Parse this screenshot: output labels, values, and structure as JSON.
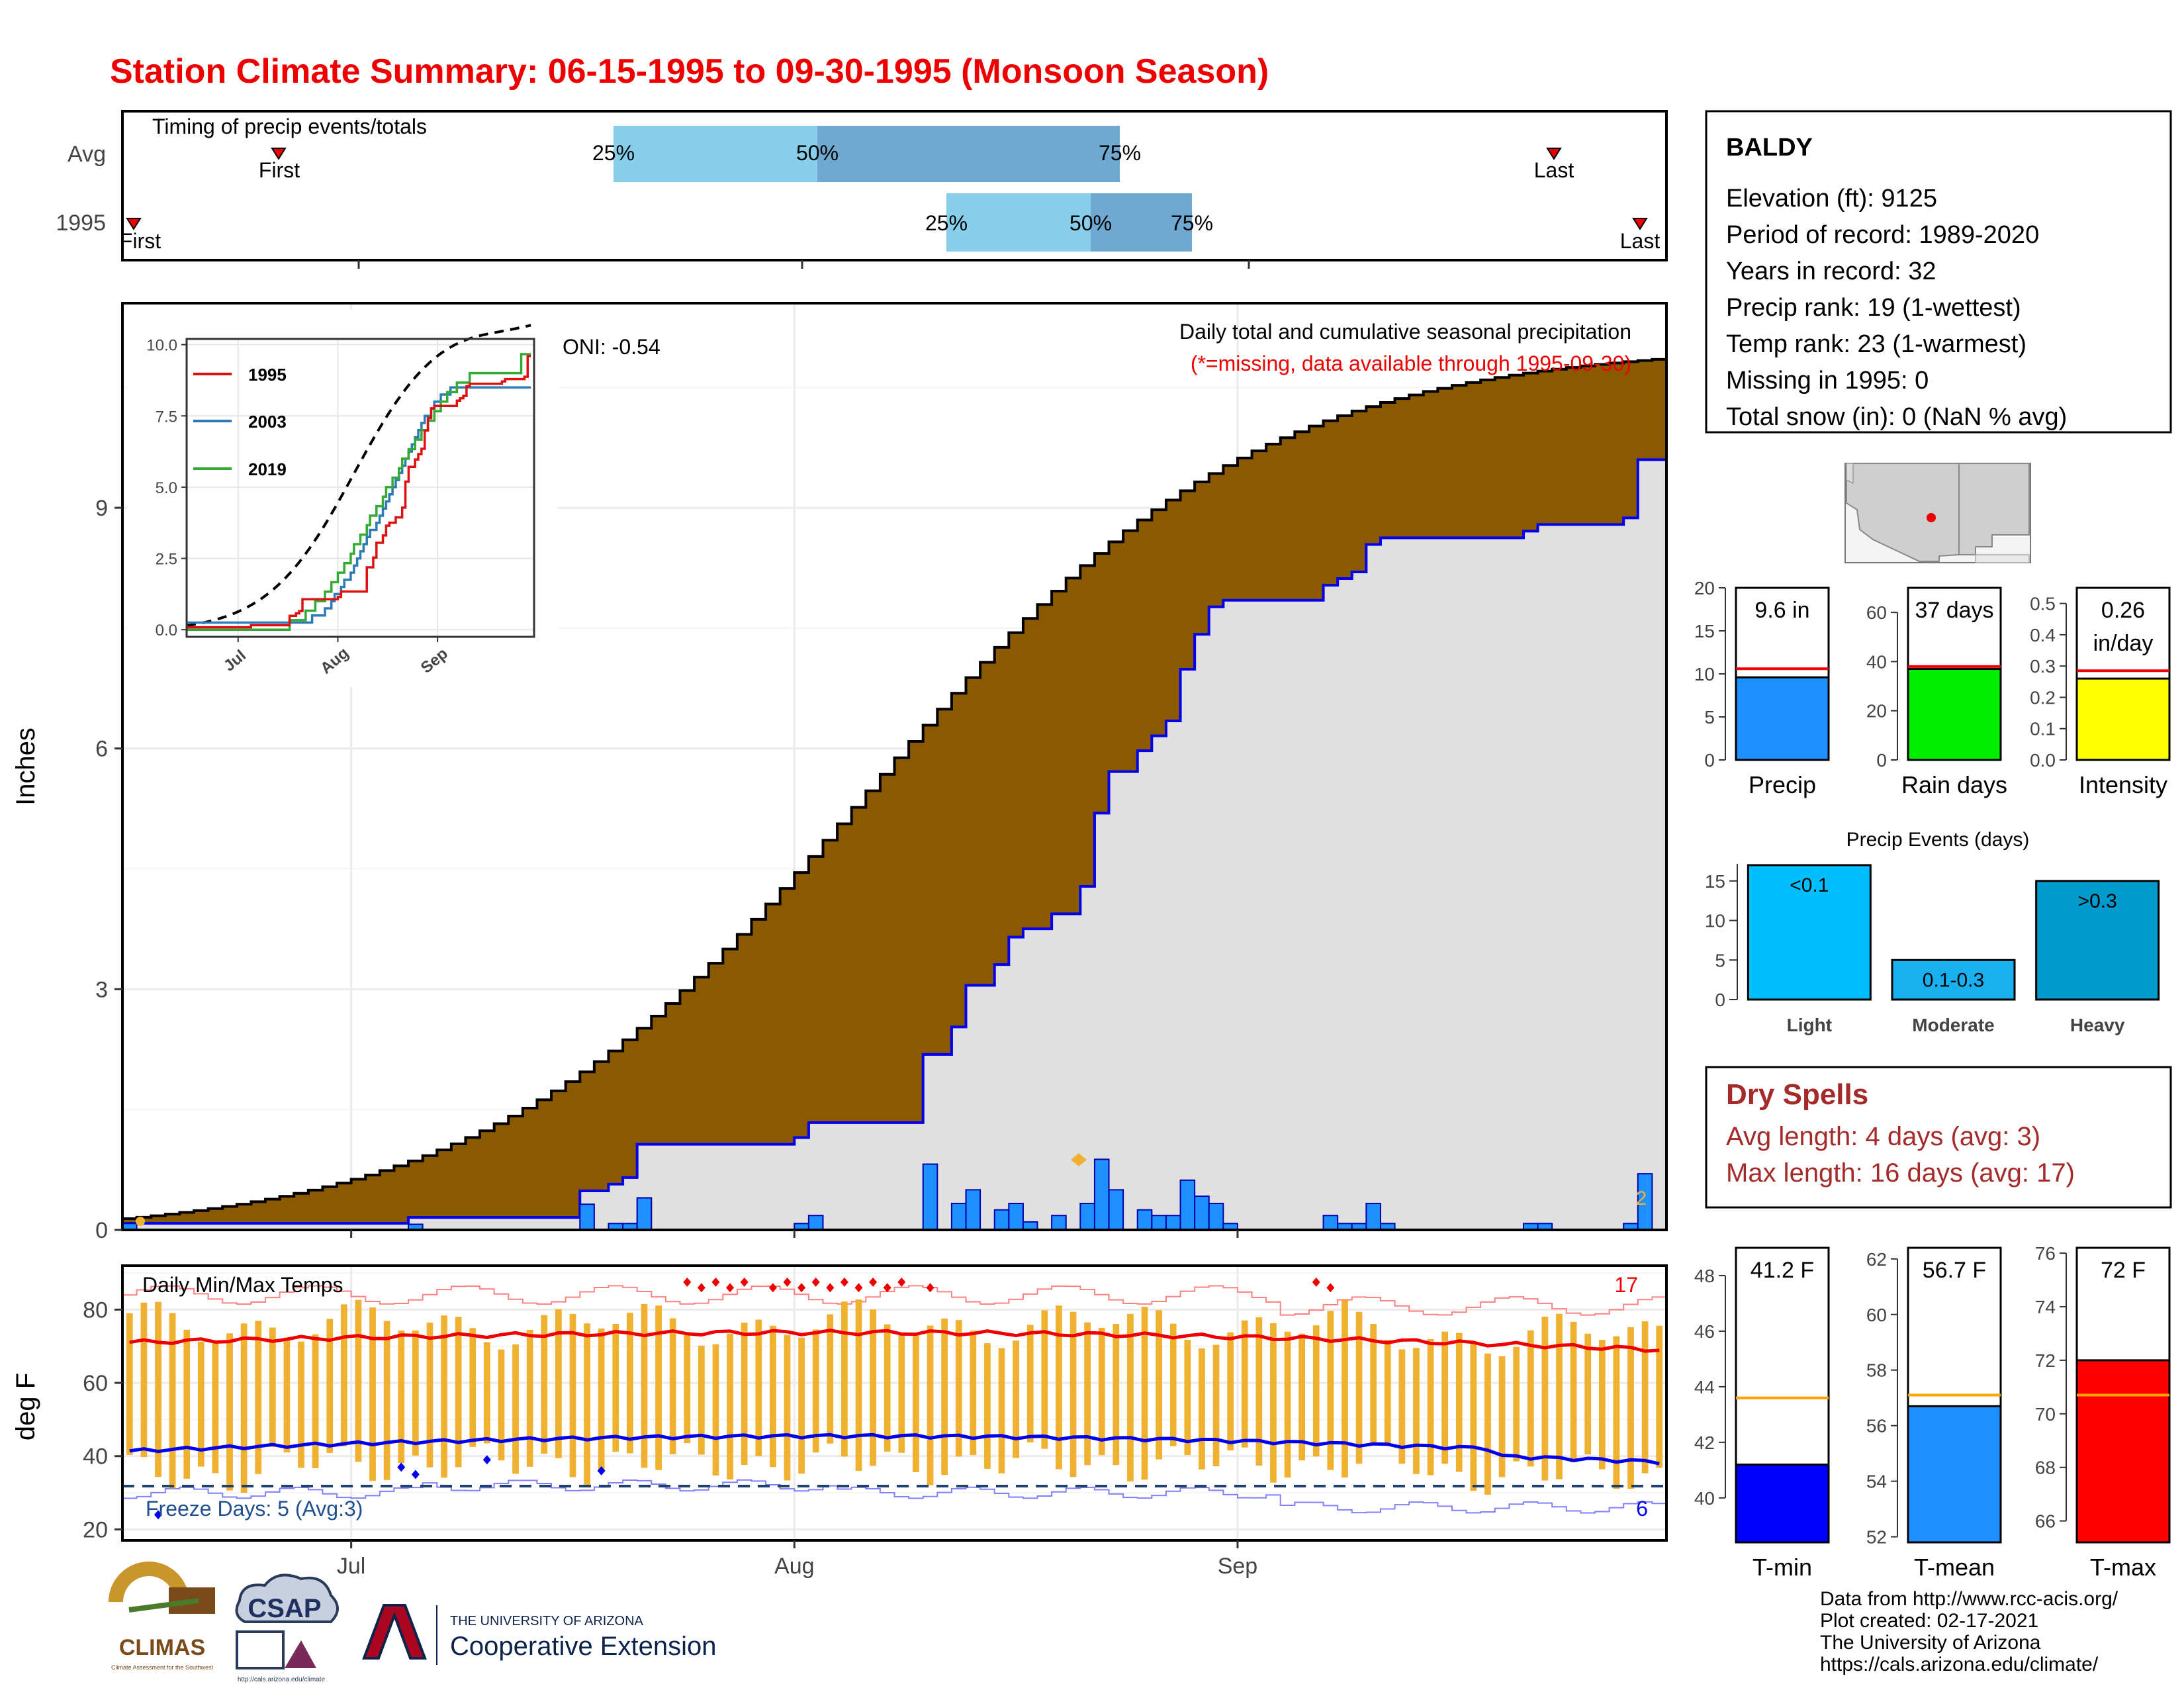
{
  "title": "Station Climate Summary: 06-15-1995 to 09-30-1995 (Monsoon Season)",
  "colors": {
    "title_red": "#ee0000",
    "brown_fill": "#8b5a00",
    "gray_fill": "#e0e0e0",
    "bar_blue": "#1e90ff",
    "avg_blue": "#0000ee",
    "light_quartile": "#87ceeb",
    "dark_quartile": "#6fa8d0",
    "orange": "#f0b030",
    "dry_spells": "#a52a2a",
    "rain_green": "#00ee00",
    "intensity_yellow": "#ffff00",
    "light_event": "#00bfff",
    "heavy_event": "#009acd",
    "tmin_blue": "#0000ff",
    "tmean_blue": "#1e90ff",
    "tmax_red": "#ff0000"
  },
  "timing": {
    "label": "Timing of precip events/totals",
    "rows": [
      "Avg",
      "1995"
    ],
    "avg": {
      "first": "First",
      "last": "Last",
      "q25": "25%",
      "q50": "50%",
      "q75": "75%"
    },
    "year": {
      "first": "First",
      "last": "Last",
      "q25": "25%",
      "q50": "50%",
      "q75": "75%"
    }
  },
  "precip_panel": {
    "ylabel": "Inches",
    "yticks": [
      "0",
      "3",
      "6",
      "9"
    ],
    "title": "Daily total and cumulative seasonal precipitation",
    "missing_note": "(*=missing, data available through 1995-09-30)",
    "oni": "ONI: -0.54",
    "end_marker": "2"
  },
  "inset": {
    "yticks": [
      "0.0",
      "2.5",
      "5.0",
      "7.5",
      "10.0"
    ],
    "xticks": [
      "Jul",
      "Aug",
      "Sep"
    ],
    "legend": [
      "1995",
      "2003",
      "2019"
    ]
  },
  "temp_panel": {
    "title": "Daily Min/Max Temps",
    "ylabel": "deg F",
    "yticks": [
      "20",
      "40",
      "60",
      "80"
    ],
    "freeze": "Freeze Days: 5 (Avg:3)",
    "max_count": "17",
    "min_count": "6"
  },
  "x_axis": {
    "ticks": [
      "Jul",
      "Aug",
      "Sep"
    ]
  },
  "station": {
    "name": "BALDY",
    "lines": [
      "Elevation (ft): 9125",
      "Period of record: 1989-2020",
      "Years in record: 32",
      "Precip rank: 19 (1-wettest)",
      "Temp rank: 23 (1-warmest)",
      "Missing in 1995: 0",
      "Total snow (in): 0 (NaN % avg)"
    ]
  },
  "mini_bars": [
    {
      "label": "Precip",
      "value_label": "9.6 in",
      "value_label2": "",
      "value": 9.6,
      "avg": 10.6,
      "ymax": 20,
      "ticks": [
        "0",
        "5",
        "10",
        "15",
        "20"
      ],
      "color": "#1e90ff"
    },
    {
      "label": "Rain days",
      "value_label": "37 days",
      "value_label2": "",
      "value": 37,
      "avg": 38,
      "ymax": 70,
      "ticks": [
        "0",
        "20",
        "40",
        "60"
      ],
      "color": "#00ee00"
    },
    {
      "label": "Intensity",
      "value_label": "0.26",
      "value_label2": "in/day",
      "value": 0.26,
      "avg": 0.285,
      "ymax": 0.55,
      "ticks": [
        "0.0",
        "0.1",
        "0.2",
        "0.3",
        "0.4",
        "0.5"
      ],
      "color": "#ffff00"
    }
  ],
  "precip_events": {
    "title": "Precip Events (days)",
    "yticks": [
      "0",
      "5",
      "10",
      "15"
    ],
    "categories": [
      "Light",
      "Moderate",
      "Heavy"
    ],
    "bar_labels": [
      "<0.1",
      "0.1-0.3",
      ">0.3"
    ],
    "values": [
      17,
      5,
      15
    ],
    "colors": [
      "#00bfff",
      "#1ab0f0",
      "#009acd"
    ]
  },
  "dry_spells": {
    "title": "Dry Spells",
    "avg_line": "Avg length: 4 days (avg: 3)",
    "max_line": "Max length: 16 days (avg: 17)"
  },
  "temp_bars": [
    {
      "label": "T-min",
      "value_label": "41.2 F",
      "value": 41.2,
      "avg": 43.6,
      "ymin": 38.4,
      "ymax": 49,
      "ticks": [
        "40",
        "42",
        "44",
        "46",
        "48"
      ],
      "color": "#0000ff"
    },
    {
      "label": "T-mean",
      "value_label": "56.7 F",
      "value": 56.7,
      "avg": 57.1,
      "ymin": 51.8,
      "ymax": 62.4,
      "ticks": [
        "52",
        "54",
        "56",
        "58",
        "60",
        "62"
      ],
      "color": "#1e90ff"
    },
    {
      "label": "T-max",
      "value_label": "72 F",
      "value": 72,
      "avg": 70.7,
      "ymin": 65.2,
      "ymax": 76.2,
      "ticks": [
        "66",
        "68",
        "70",
        "72",
        "74",
        "76"
      ],
      "color": "#ff0000"
    }
  ],
  "footer": {
    "lines": [
      "Data from http://www.rcc-acis.org/",
      "Plot created: 02-17-2021",
      "The University of Arizona",
      "https://cals.arizona.edu/climate/"
    ],
    "logo_climas": "CLIMAS",
    "logo_climas_sub": "Climate Assessment for the Southwest",
    "logo_csap": "CSAP",
    "logo_csap_url": "http://cals.arizona.edu/climate",
    "ua_small": "THE UNIVERSITY OF ARIZONA",
    "ua_big": "Cooperative Extension"
  },
  "chart_data": {
    "type": "bar",
    "period": {
      "start": "1995-06-15",
      "end": "1995-09-30"
    },
    "cumulative_1995_final": 9.6,
    "cumulative_avg_final": 10.6,
    "daily_precip": [
      {
        "date": "1995-06-15",
        "value": 0.08
      },
      {
        "date": "1995-07-05",
        "value": 0.07
      },
      {
        "date": "1995-07-17",
        "value": 0.32
      },
      {
        "date": "1995-07-19",
        "value": 0.08
      },
      {
        "date": "1995-07-20",
        "value": 0.08
      },
      {
        "date": "1995-07-21",
        "value": 0.4
      },
      {
        "date": "1995-08-01",
        "value": 0.08
      },
      {
        "date": "1995-08-02",
        "value": 0.18
      },
      {
        "date": "1995-08-10",
        "value": 0.82
      },
      {
        "date": "1995-08-12",
        "value": 0.33
      },
      {
        "date": "1995-08-13",
        "value": 0.5
      },
      {
        "date": "1995-08-15",
        "value": 0.25
      },
      {
        "date": "1995-08-16",
        "value": 0.33
      },
      {
        "date": "1995-08-17",
        "value": 0.1
      },
      {
        "date": "1995-08-19",
        "value": 0.18
      },
      {
        "date": "1995-08-21",
        "value": 0.33
      },
      {
        "date": "1995-08-22",
        "value": 0.88
      },
      {
        "date": "1995-08-23",
        "value": 0.5
      },
      {
        "date": "1995-08-25",
        "value": 0.25
      },
      {
        "date": "1995-08-26",
        "value": 0.18
      },
      {
        "date": "1995-08-27",
        "value": 0.18
      },
      {
        "date": "1995-08-28",
        "value": 0.62
      },
      {
        "date": "1995-08-29",
        "value": 0.42
      },
      {
        "date": "1995-08-30",
        "value": 0.33
      },
      {
        "date": "1995-08-31",
        "value": 0.08
      },
      {
        "date": "1995-09-07",
        "value": 0.18
      },
      {
        "date": "1995-09-08",
        "value": 0.08
      },
      {
        "date": "1995-09-09",
        "value": 0.08
      },
      {
        "date": "1995-09-10",
        "value": 0.33
      },
      {
        "date": "1995-09-11",
        "value": 0.08
      },
      {
        "date": "1995-09-21",
        "value": 0.08
      },
      {
        "date": "1995-09-22",
        "value": 0.08
      },
      {
        "date": "1995-09-28",
        "value": 0.08
      },
      {
        "date": "1995-09-29",
        "value": 0.7
      }
    ],
    "temp_ylim": [
      17,
      92
    ],
    "freeze_days": 5,
    "freeze_days_avg": 3
  }
}
